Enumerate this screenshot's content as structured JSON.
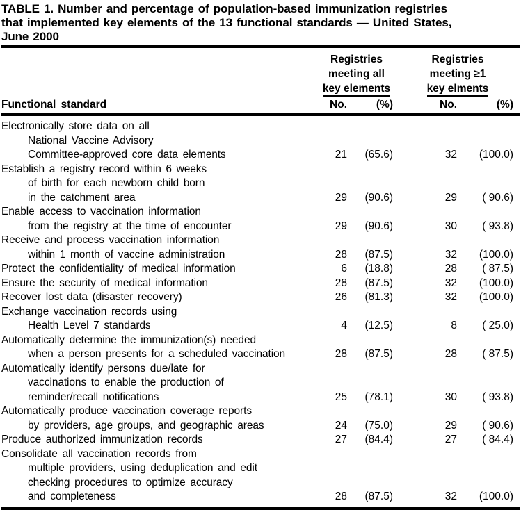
{
  "colors": {
    "text": "#000000",
    "background": "#ffffff",
    "rule": "#000000"
  },
  "title_lines": [
    "TABLE 1. Number and percentage of population-based immunization registries",
    "that implemented key elements of the 13 functional standards — United States,",
    "June 2000"
  ],
  "table": {
    "row_header": "Functional standard",
    "col_group_all": {
      "line1": "Registries",
      "line2": "meeting all",
      "underlined": "key elements"
    },
    "col_group_ge1": {
      "line1": "Registries",
      "line2": "meeting ≥1",
      "underlined": "key elments"
    },
    "sub_headers": {
      "no": "No.",
      "pct": "(%)"
    },
    "rows": [
      {
        "lines": [
          "Electronically store data on all",
          "National Vaccine Advisory",
          "Committee-approved core data elements"
        ],
        "all_no": "21",
        "all_pct": "(65.6)",
        "ge1_no": "32",
        "ge1_pct": "(100.0)"
      },
      {
        "lines": [
          "Establish a registry record within 6 weeks",
          "of birth for each newborn child born",
          "in the catchment area"
        ],
        "all_no": "29",
        "all_pct": "(90.6)",
        "ge1_no": "29",
        "ge1_pct": "( 90.6)"
      },
      {
        "lines": [
          "Enable access to vaccination information",
          "from the registry at the time of encounter"
        ],
        "all_no": "29",
        "all_pct": "(90.6)",
        "ge1_no": "30",
        "ge1_pct": "( 93.8)"
      },
      {
        "lines": [
          "Receive and process vaccination information",
          "within 1 month of vaccine administration"
        ],
        "all_no": "28",
        "all_pct": "(87.5)",
        "ge1_no": "32",
        "ge1_pct": "(100.0)"
      },
      {
        "lines": [
          "Protect the confidentiality of medical information"
        ],
        "all_no": "6",
        "all_pct": "(18.8)",
        "ge1_no": "28",
        "ge1_pct": "( 87.5)"
      },
      {
        "lines": [
          "Ensure the security of medical information"
        ],
        "all_no": "28",
        "all_pct": "(87.5)",
        "ge1_no": "32",
        "ge1_pct": "(100.0)"
      },
      {
        "lines": [
          "Recover lost data (disaster recovery)"
        ],
        "all_no": "26",
        "all_pct": "(81.3)",
        "ge1_no": "32",
        "ge1_pct": "(100.0)"
      },
      {
        "lines": [
          "Exchange vaccination records using",
          "Health Level 7 standards"
        ],
        "all_no": "4",
        "all_pct": "(12.5)",
        "ge1_no": "8",
        "ge1_pct": "( 25.0)"
      },
      {
        "lines": [
          "Automatically determine the immunization(s) needed",
          "when a person presents for a scheduled vaccination"
        ],
        "all_no": "28",
        "all_pct": "(87.5)",
        "ge1_no": "28",
        "ge1_pct": "( 87.5)"
      },
      {
        "lines": [
          "Automatically identify persons due/late for",
          "vaccinations to enable the production of",
          "reminder/recall notifications"
        ],
        "all_no": "25",
        "all_pct": "(78.1)",
        "ge1_no": "30",
        "ge1_pct": "( 93.8)"
      },
      {
        "lines": [
          "Automatically produce vaccination coverage reports",
          "by providers, age groups, and geographic areas"
        ],
        "all_no": "24",
        "all_pct": "(75.0)",
        "ge1_no": "29",
        "ge1_pct": "( 90.6)"
      },
      {
        "lines": [
          "Produce authorized immunization records"
        ],
        "all_no": "27",
        "all_pct": "(84.4)",
        "ge1_no": "27",
        "ge1_pct": "( 84.4)"
      },
      {
        "lines": [
          "Consolidate all vaccination records from",
          "multiple providers, using deduplication and edit",
          "checking procedures to optimize accuracy",
          "and completeness"
        ],
        "all_no": "28",
        "all_pct": "(87.5)",
        "ge1_no": "32",
        "ge1_pct": "(100.0)"
      }
    ]
  }
}
